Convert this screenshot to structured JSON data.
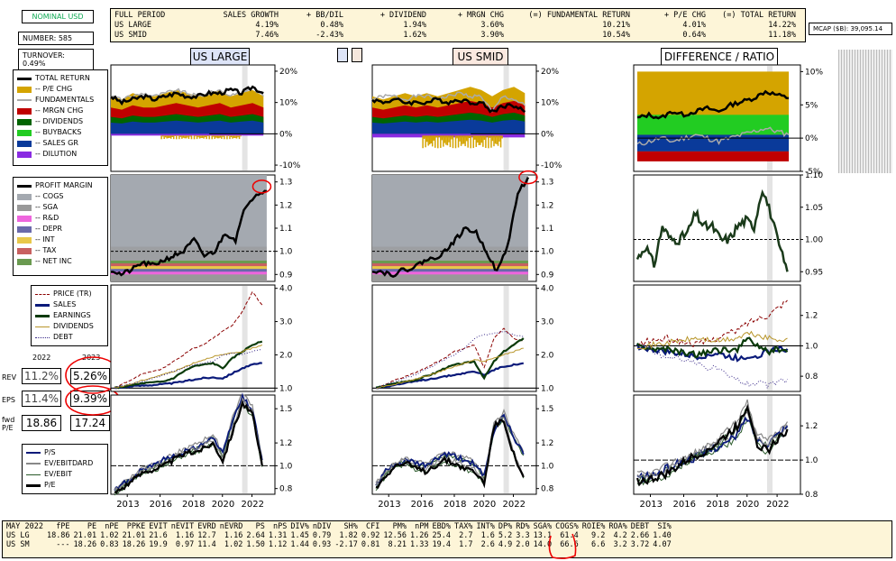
{
  "header": {
    "nominal": "NOMINAL USD",
    "number": "NUMBER: 585",
    "turnover": "TURNOVER: 0.49%",
    "mcap": "MCAP ($B): 39,095.14"
  },
  "summary": {
    "cols": [
      "FULL PERIOD",
      "SALES GROWTH",
      "+ BB/DIL",
      "+ DIVIDEND",
      "+ MRGN CHG",
      "(=) FUNDAMENTAL RETURN",
      "+ P/E CHG",
      "(=) TOTAL RETURN"
    ],
    "rows": [
      [
        "US LARGE",
        "4.19%",
        "0.48%",
        "1.94%",
        "3.60%",
        "10.21%",
        "4.01%",
        "14.22%"
      ],
      [
        "US SMID",
        "7.46%",
        "-2.43%",
        "1.62%",
        "3.90%",
        "10.54%",
        "0.64%",
        "11.18%"
      ]
    ]
  },
  "titles": {
    "left": "US LARGE",
    "mid": "US SMID",
    "right": "DIFFERENCE / RATIO"
  },
  "legends": {
    "returns": [
      "TOTAL RETURN",
      "-- P/E CHG",
      "FUNDAMENTALS",
      "-- MRGN CHG",
      "-- DIVIDENDS",
      "-- BUYBACKS",
      "-- SALES GR",
      "-- DILUTION"
    ],
    "margin": [
      "PROFIT MARGIN",
      "-- COGS",
      "-- SGA",
      "-- R&D",
      "-- DEPR",
      "-- INT",
      "-- TAX",
      "-- NET INC"
    ],
    "growth": [
      "PRICE (TR)",
      "SALES",
      "EARNINGS",
      "DIVIDENDS",
      "DEBT"
    ],
    "valuation": [
      "P/S",
      "EV/EBITDARD",
      "EV/EBIT",
      "P/E"
    ]
  },
  "colors": {
    "pe": "#d4a400",
    "fund": "#aaaaaa",
    "mrgn": "#c00000",
    "div": "#006400",
    "bb": "#22cc22",
    "sales": "#0a3a9a",
    "dil": "#8a2be2",
    "cogs": "#a4a9b0",
    "sga": "#999999",
    "rd": "#ee66dd",
    "depr": "#6a6aaa",
    "int": "#e8c84a",
    "tax": "#c86060",
    "netinc": "#6a9a50"
  },
  "estimates": {
    "years": [
      "2022",
      "2023"
    ],
    "rows": [
      {
        "label": "REV",
        "v2022": "11.2%",
        "v2023": "5.26%"
      },
      {
        "label": "EPS",
        "v2022": "11.4%",
        "v2023": "9.39%"
      },
      {
        "label": "fwd P/E",
        "v2022": "18.86",
        "v2023": "17.24"
      }
    ]
  },
  "bottom": {
    "head": [
      "MAY 2022",
      "fPE",
      "PE",
      "nPE",
      "PPKE",
      "EVIT",
      "nEVIT",
      "EVRD",
      "nEVRD",
      "PS",
      "nPS",
      "DIV%",
      "nDIV",
      "SH%",
      "CFI",
      "PM%",
      "nPM",
      "EBD%",
      "TAX%",
      "INT%",
      "DP%",
      "RD%",
      "SGA%",
      "COGS%",
      "ROIE%",
      "ROA%",
      "DEBT",
      "SI%"
    ],
    "rows": [
      [
        "US LG",
        "18.86",
        "21.01",
        "1.02",
        "21.01",
        "21.6",
        "1.16",
        "12.7",
        "1.16",
        "2.64",
        "1.31",
        "1.45",
        "0.79",
        "1.82",
        "0.92",
        "12.56",
        "1.26",
        "25.4",
        "2.7",
        "1.6",
        "5.2",
        "3.3",
        "13.1",
        "61.4",
        "9.2",
        "4.2",
        "2.66",
        "1.40"
      ],
      [
        "US SM",
        "---",
        "18.26",
        "0.83",
        "18.26",
        "19.9",
        "0.97",
        "11.4",
        "1.02",
        "1.50",
        "1.12",
        "1.44",
        "0.93",
        "-2.17",
        "0.81",
        "8.21",
        "1.33",
        "19.4",
        "1.7",
        "2.6",
        "4.9",
        "2.0",
        "14.0",
        "66.6",
        "6.6",
        "3.2",
        "3.72",
        "4.07"
      ]
    ]
  },
  "chart_data": [
    {
      "id": "returns_large",
      "type": "area",
      "title": "US LARGE",
      "ylim": [
        -12,
        22
      ],
      "yticks": [
        "20%",
        "10%",
        "0%",
        "-10%"
      ],
      "note": "stacked return attribution 2012-2022"
    },
    {
      "id": "returns_smid",
      "type": "area",
      "title": "US SMID",
      "ylim": [
        -12,
        22
      ],
      "yticks": [
        "20%",
        "10%",
        "0%",
        "-10%"
      ]
    },
    {
      "id": "returns_diff",
      "type": "area",
      "title": "DIFFERENCE / RATIO",
      "ylim": [
        -5,
        11
      ],
      "yticks": [
        "10%",
        "5%",
        "0%",
        "-5%"
      ]
    },
    {
      "id": "margin_large",
      "type": "area",
      "ylim": [
        0.87,
        1.33
      ],
      "yticks": [
        "1.3",
        "1.2",
        "1.1",
        "1.0",
        "0.9"
      ],
      "profit_margin": [
        0.92,
        0.9,
        0.92,
        0.95,
        0.94,
        0.96,
        0.98,
        1.0,
        1.05,
        0.98,
        1.0,
        1.08,
        1.05,
        1.2,
        1.25,
        1.26
      ]
    },
    {
      "id": "margin_smid",
      "type": "area",
      "ylim": [
        0.87,
        1.33
      ],
      "yticks": [
        "1.3",
        "1.2",
        "1.1",
        "1.0",
        "0.9"
      ],
      "profit_margin": [
        0.92,
        0.91,
        0.9,
        0.92,
        0.93,
        0.96,
        0.97,
        1.0,
        1.05,
        1.1,
        1.08,
        1.0,
        0.91,
        1.02,
        1.25,
        1.32
      ]
    },
    {
      "id": "margin_ratio",
      "type": "line",
      "ylim": [
        0.935,
        1.1
      ],
      "yticks": [
        "1.10",
        "1.05",
        "1.00",
        "0.95"
      ],
      "values": [
        0.97,
        0.99,
        0.96,
        1.02,
        1.0,
        1.0,
        1.01,
        1.04,
        1.02,
        1.02,
        1.0,
        1.0,
        1.02,
        1.03,
        1.02,
        1.08,
        1.04,
        0.99,
        0.95
      ]
    },
    {
      "id": "growth_large",
      "type": "line",
      "ylim": [
        0.9,
        4.1
      ],
      "yticks": [
        "4.0",
        "3.0",
        "2.0",
        "1.0"
      ],
      "series": [
        {
          "name": "PRICE (TR)",
          "values": [
            1.0,
            1.15,
            1.3,
            1.45,
            1.5,
            1.6,
            1.8,
            2.0,
            2.2,
            2.3,
            2.5,
            2.7,
            2.9,
            3.3,
            3.9,
            3.5
          ]
        },
        {
          "name": "SALES",
          "values": [
            1.0,
            1.03,
            1.06,
            1.08,
            1.1,
            1.12,
            1.15,
            1.2,
            1.25,
            1.3,
            1.32,
            1.3,
            1.45,
            1.6,
            1.7,
            1.75
          ]
        },
        {
          "name": "EARNINGS",
          "values": [
            1.0,
            1.05,
            1.1,
            1.15,
            1.17,
            1.2,
            1.3,
            1.5,
            1.65,
            1.7,
            1.75,
            1.6,
            1.9,
            2.1,
            2.3,
            2.4
          ]
        },
        {
          "name": "DIVIDENDS",
          "values": [
            1.0,
            1.07,
            1.15,
            1.25,
            1.33,
            1.42,
            1.5,
            1.62,
            1.75,
            1.85,
            1.95,
            2.0,
            2.05,
            2.1,
            2.2,
            2.3
          ]
        },
        {
          "name": "DEBT",
          "values": [
            1.0,
            1.08,
            1.15,
            1.2,
            1.3,
            1.4,
            1.5,
            1.6,
            1.7,
            1.75,
            1.8,
            2.0,
            2.05,
            2.0,
            2.1,
            2.15
          ]
        }
      ]
    },
    {
      "id": "growth_smid",
      "type": "line",
      "ylim": [
        0.9,
        4.1
      ],
      "yticks": [
        "4.0",
        "3.0",
        "2.0",
        "1.0"
      ],
      "series": [
        {
          "name": "PRICE (TR)",
          "values": [
            1.0,
            1.1,
            1.25,
            1.35,
            1.45,
            1.6,
            1.75,
            1.9,
            2.1,
            2.2,
            2.3,
            1.6,
            2.5,
            2.8,
            2.5,
            2.4
          ]
        },
        {
          "name": "SALES",
          "values": [
            1.0,
            1.05,
            1.1,
            1.15,
            1.2,
            1.25,
            1.3,
            1.35,
            1.4,
            1.45,
            1.5,
            1.4,
            1.55,
            1.65,
            1.7,
            1.75
          ]
        },
        {
          "name": "EARNINGS",
          "values": [
            1.0,
            1.08,
            1.15,
            1.2,
            1.25,
            1.35,
            1.45,
            1.6,
            1.7,
            1.75,
            1.8,
            1.3,
            1.8,
            2.1,
            2.3,
            2.5
          ]
        },
        {
          "name": "DIVIDENDS",
          "values": [
            1.0,
            1.07,
            1.12,
            1.2,
            1.27,
            1.35,
            1.45,
            1.55,
            1.65,
            1.75,
            1.85,
            1.8,
            1.9,
            2.0,
            2.1,
            2.2
          ]
        },
        {
          "name": "DEBT",
          "values": [
            1.0,
            1.1,
            1.2,
            1.3,
            1.4,
            1.55,
            1.7,
            1.85,
            2.0,
            2.2,
            2.5,
            2.6,
            2.65,
            2.7,
            2.6,
            2.55
          ]
        }
      ]
    },
    {
      "id": "growth_ratio",
      "type": "line",
      "ylim": [
        0.7,
        1.4
      ],
      "yticks": [
        "1.2",
        "1.0",
        "0.8"
      ],
      "series": [
        {
          "name": "PRICE (TR)",
          "values": [
            1.0,
            1.03,
            1.04,
            1.05,
            1.03,
            1.02,
            1.01,
            1.03,
            1.05,
            1.08,
            1.1,
            1.15,
            1.18,
            1.2,
            1.25,
            1.3
          ]
        },
        {
          "name": "SALES",
          "values": [
            1.0,
            0.98,
            0.97,
            0.96,
            0.95,
            0.94,
            0.93,
            0.94,
            0.95,
            0.93,
            0.92,
            0.93,
            0.94,
            0.96,
            0.98,
            0.98
          ]
        },
        {
          "name": "EARNINGS",
          "values": [
            1.0,
            0.99,
            0.97,
            0.98,
            0.96,
            0.95,
            0.94,
            0.96,
            0.97,
            0.98,
            0.97,
            1.05,
            1.0,
            0.96,
            0.98,
            0.96
          ]
        },
        {
          "name": "DIVIDENDS",
          "values": [
            1.0,
            1.0,
            1.01,
            1.02,
            1.03,
            1.04,
            1.05,
            1.04,
            1.03,
            1.04,
            1.05,
            1.08,
            1.07,
            1.05,
            1.04,
            1.05
          ]
        },
        {
          "name": "DEBT",
          "values": [
            1.0,
            0.98,
            0.95,
            0.92,
            0.93,
            0.9,
            0.88,
            0.86,
            0.85,
            0.8,
            0.78,
            0.75,
            0.76,
            0.74,
            0.76,
            0.78
          ]
        }
      ]
    },
    {
      "id": "val_large",
      "type": "line",
      "ylim": [
        0.75,
        1.62
      ],
      "yticks": [
        "1.5",
        "1.2",
        "1.0",
        "0.8"
      ],
      "xticks": [
        "2013",
        "2016",
        "2018",
        "2020",
        "2022"
      ],
      "series": [
        {
          "name": "P/S",
          "values": [
            0.78,
            0.85,
            0.9,
            0.98,
            1.0,
            1.05,
            1.08,
            1.12,
            1.15,
            1.2,
            1.25,
            1.1,
            1.4,
            1.6,
            1.5,
            1.05
          ]
        },
        {
          "name": "P/E",
          "values": [
            0.76,
            0.82,
            0.88,
            0.95,
            0.97,
            1.0,
            1.05,
            1.1,
            1.12,
            1.15,
            1.2,
            1.05,
            1.3,
            1.55,
            1.45,
            1.0
          ]
        }
      ]
    },
    {
      "id": "val_smid",
      "type": "line",
      "ylim": [
        0.75,
        1.62
      ],
      "yticks": [
        "1.5",
        "1.2",
        "1.0",
        "0.8"
      ],
      "xticks": [
        "2013",
        "2016",
        "2018",
        "2020",
        "2022"
      ],
      "series": [
        {
          "name": "P/S",
          "values": [
            0.82,
            0.95,
            1.0,
            1.05,
            1.02,
            1.0,
            1.05,
            1.1,
            1.08,
            1.05,
            1.02,
            0.9,
            1.3,
            1.45,
            1.25,
            1.1
          ]
        },
        {
          "name": "P/E",
          "values": [
            0.8,
            0.92,
            1.0,
            1.02,
            0.98,
            0.95,
            1.0,
            1.05,
            1.02,
            0.98,
            0.95,
            0.85,
            1.35,
            1.4,
            1.1,
            0.9
          ]
        }
      ]
    },
    {
      "id": "val_ratio",
      "type": "line",
      "ylim": [
        0.8,
        1.38
      ],
      "yticks": [
        "1.2",
        "1.0",
        "0.8"
      ],
      "xticks": [
        "2013",
        "2016",
        "2018",
        "2020",
        "2022"
      ],
      "series": [
        {
          "name": "P/S",
          "values": [
            0.9,
            0.9,
            0.92,
            0.95,
            0.98,
            1.0,
            1.02,
            1.05,
            1.08,
            1.1,
            1.15,
            1.25,
            1.12,
            1.1,
            1.15,
            1.2
          ]
        },
        {
          "name": "P/E",
          "values": [
            0.88,
            0.88,
            0.9,
            0.92,
            0.96,
            1.0,
            1.03,
            1.06,
            1.1,
            1.15,
            1.2,
            1.32,
            1.1,
            1.05,
            1.12,
            1.18
          ]
        }
      ]
    }
  ]
}
